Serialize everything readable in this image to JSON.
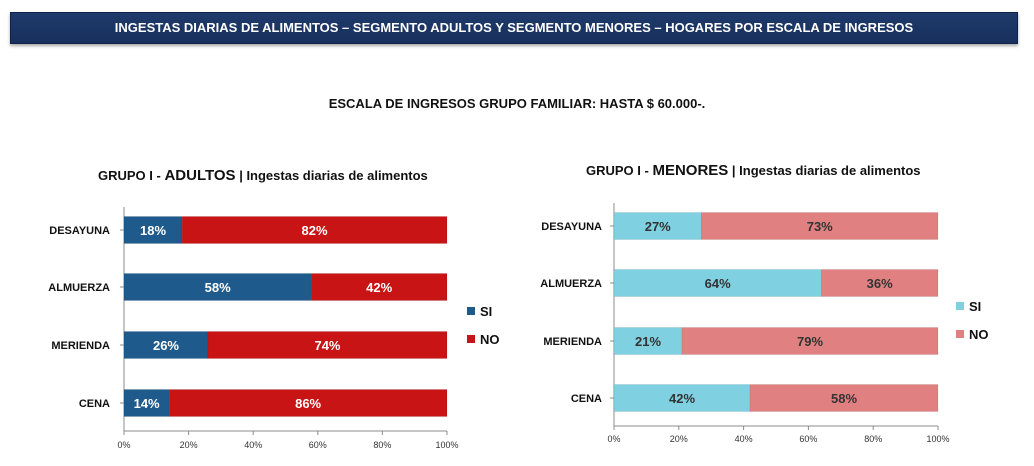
{
  "banner": "INGESTAS DIARIAS DE ALIMENTOS – SEGMENTO ADULTOS Y SEGMENTO MENORES – HOGARES  POR ESCALA DE INGRESOS",
  "subtitle": "ESCALA DE INGRESOS GRUPO FAMILIAR: HASTA $ 60.000-.",
  "chart_data": [
    {
      "type": "bar",
      "orientation": "horizontal",
      "stacked": true,
      "title_prefix": "GRUPO I - ",
      "title_group": "ADULTOS",
      "title_suffix": " | Ingestas diarias de alimentos",
      "categories": [
        "DESAYUNA",
        "ALMUERZA",
        "MERIENDA",
        "CENA"
      ],
      "series": [
        {
          "name": "SI",
          "values": [
            18,
            58,
            26,
            14
          ],
          "color": "#1f5a8c"
        },
        {
          "name": "NO",
          "values": [
            82,
            42,
            74,
            86
          ],
          "color": "#c81414"
        }
      ],
      "xlim": [
        0,
        100
      ],
      "xticks": [
        "0%",
        "20%",
        "40%",
        "60%",
        "80%",
        "100%"
      ],
      "legend": "right"
    },
    {
      "type": "bar",
      "orientation": "horizontal",
      "stacked": true,
      "title_prefix": "GRUPO I - ",
      "title_group": "MENORES",
      "title_suffix": " | Ingestas diarias de alimentos",
      "categories": [
        "DESAYUNA",
        "ALMUERZA",
        "MERIENDA",
        "CENA"
      ],
      "series": [
        {
          "name": "SI",
          "values": [
            27,
            64,
            21,
            42
          ],
          "color": "#7fd0e0"
        },
        {
          "name": "NO",
          "values": [
            73,
            36,
            79,
            58
          ],
          "color": "#e08080"
        }
      ],
      "xlim": [
        0,
        100
      ],
      "xticks": [
        "0%",
        "20%",
        "40%",
        "60%",
        "80%",
        "100%"
      ],
      "legend": "right"
    }
  ]
}
